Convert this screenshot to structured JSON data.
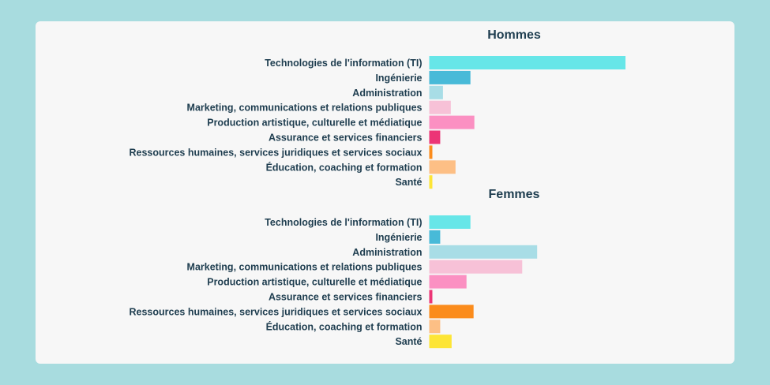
{
  "chart_data": [
    {
      "type": "bar",
      "orientation": "horizontal",
      "title": "Hommes",
      "categories": [
        "Technologies de l'information (TI)",
        "Ingénierie",
        "Administration",
        "Marketing, communications et relations publiques",
        "Production artistique, culturelle et médiatique",
        "Assurance et services financiers",
        "Ressources humaines, services juridiques et services sociaux",
        "Éducation, coaching et formation",
        "Santé"
      ],
      "values": [
        50,
        10.5,
        3.5,
        5.5,
        11.5,
        2.8,
        0.8,
        6.7,
        0.8
      ],
      "colors": [
        "#67e6e8",
        "#48bad8",
        "#a8dde6",
        "#f7c1d7",
        "#fb90c2",
        "#ec3576",
        "#fb8c1c",
        "#fdbf85",
        "#fde536"
      ],
      "xlim": [
        0,
        50
      ],
      "grid": false,
      "legend": "none"
    },
    {
      "type": "bar",
      "orientation": "horizontal",
      "title": "Femmes",
      "categories": [
        "Technologies de l'information (TI)",
        "Ingénierie",
        "Administration",
        "Marketing, communications et relations publiques",
        "Production artistique, culturelle et médiatique",
        "Assurance et services financiers",
        "Ressources humaines, services juridiques et services sociaux",
        "Éducation, coaching et formation",
        "Santé"
      ],
      "values": [
        10.5,
        2.8,
        27.5,
        23.7,
        9.5,
        0.8,
        11.3,
        2.8,
        5.7
      ],
      "colors": [
        "#67e6e8",
        "#48bad8",
        "#a8dde6",
        "#f7c1d7",
        "#fb90c2",
        "#ec3576",
        "#fb8c1c",
        "#fdbf85",
        "#fde536"
      ],
      "xlim": [
        0,
        50
      ],
      "grid": false,
      "legend": "none"
    }
  ]
}
